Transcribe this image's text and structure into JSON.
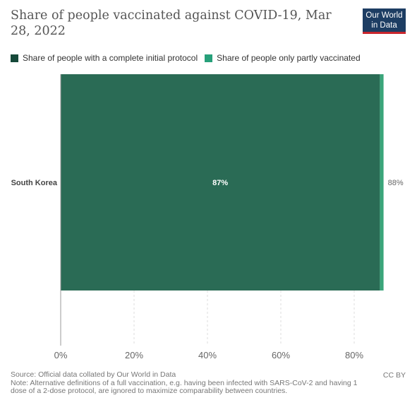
{
  "header": {
    "title": "Share of people vaccinated against COVID-19, Mar 28, 2022",
    "logo_line1": "Our World",
    "logo_line2": "in Data"
  },
  "footer": {
    "source": "Source: Official data collated by Our World in Data",
    "note": "Note: Alternative definitions of a full vaccination, e.g. having been infected with SARS-CoV-2 and having 1 dose of a 2-dose protocol, are ignored to maximize comparability between countries.",
    "license": "CC BY"
  },
  "colors": {
    "complete": "#2a6b55",
    "partial": "#3aa57a",
    "grid": "#dddddd",
    "axis_text": "#666666"
  },
  "chart_data": {
    "type": "bar",
    "orientation": "horizontal",
    "stacked": true,
    "categories": [
      "South Korea"
    ],
    "series": [
      {
        "name": "Share of people with a complete initial protocol",
        "values": [
          87
        ],
        "labels": [
          "87%"
        ]
      },
      {
        "name": "Share of people only partly vaccinated",
        "values": [
          1
        ],
        "labels": [
          ""
        ]
      }
    ],
    "total_labels": [
      "88%"
    ],
    "xlim": [
      0,
      100
    ],
    "xticks": [
      0,
      20,
      40,
      60,
      80
    ],
    "xtick_labels": [
      "0%",
      "20%",
      "40%",
      "60%",
      "80%"
    ],
    "grid": true,
    "legend_position": "top-left"
  }
}
